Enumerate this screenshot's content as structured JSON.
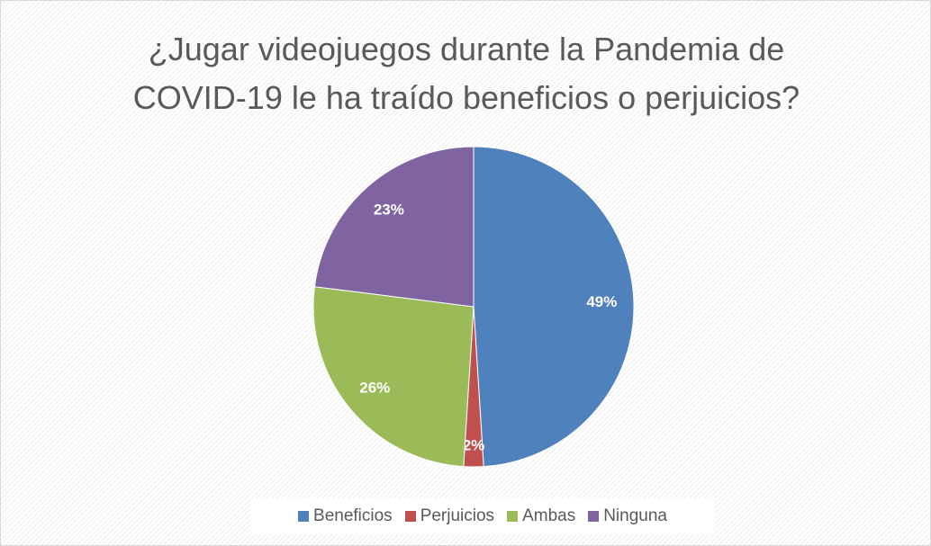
{
  "chart_data": {
    "type": "pie",
    "title": "¿Jugar videojuegos durante la Pandemia de COVID-19 le ha traído beneficios o perjuicios?",
    "categories": [
      "Beneficios",
      "Perjuicios",
      "Ambas",
      "Ninguna"
    ],
    "values": [
      49,
      2,
      26,
      23
    ],
    "value_labels": [
      "49%",
      "2%",
      "26%",
      "23%"
    ],
    "colors": [
      "#4f81bd",
      "#c0504d",
      "#9bbb59",
      "#8064a2"
    ],
    "legend": "bottom"
  }
}
